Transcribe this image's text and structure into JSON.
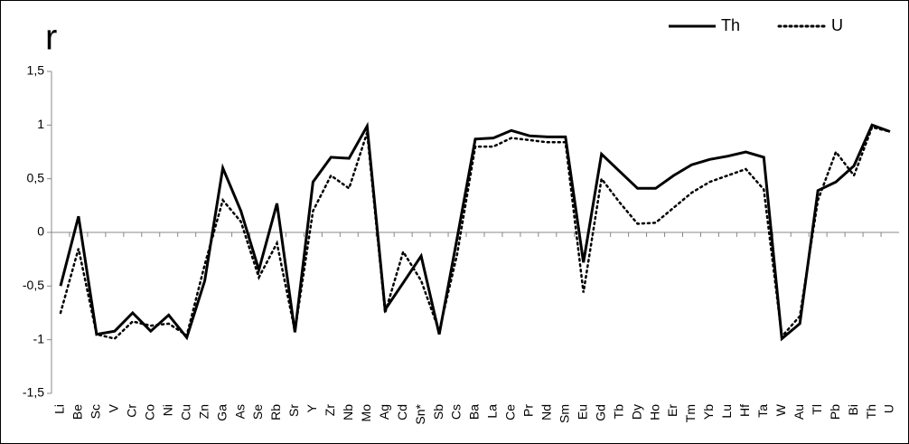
{
  "chart_data": {
    "type": "line",
    "title": "r",
    "categories": [
      "Li",
      "Be",
      "Sc",
      "V",
      "Cr",
      "Co",
      "Ni",
      "Cu",
      "Zn",
      "Ga",
      "As",
      "Se",
      "Rb",
      "Sr",
      "Y",
      "Zr",
      "Nb",
      "Mo",
      "Ag",
      "Cd",
      "Sn*",
      "Sb",
      "Cs",
      "Ba",
      "La",
      "Ce",
      "Pr",
      "Nd",
      "Sm",
      "Eu",
      "Gd",
      "Tb",
      "Dy",
      "Ho",
      "Er",
      "Tm",
      "Yb",
      "Lu",
      "Hf",
      "Ta",
      "W",
      "Au",
      "Tl",
      "Pb",
      "Bi",
      "Th",
      "U"
    ],
    "series": [
      {
        "name": "Th",
        "color": "#000000",
        "style": "solid",
        "values": [
          -0.5,
          0.15,
          -0.95,
          -0.92,
          -0.75,
          -0.92,
          -0.77,
          -0.98,
          -0.45,
          0.6,
          0.2,
          -0.35,
          0.27,
          -0.93,
          0.47,
          0.7,
          0.69,
          0.99,
          -0.72,
          -0.47,
          -0.22,
          -0.95,
          -0.05,
          0.87,
          0.88,
          0.95,
          0.9,
          0.89,
          0.89,
          -0.28,
          0.73,
          0.57,
          0.41,
          0.41,
          0.53,
          0.63,
          0.68,
          0.71,
          0.75,
          0.7,
          -0.99,
          -0.85,
          0.39,
          0.47,
          0.62,
          1.0,
          0.94
        ]
      },
      {
        "name": "U",
        "color": "#000000",
        "style": "dotted",
        "values": [
          -0.75,
          -0.15,
          -0.95,
          -0.99,
          -0.83,
          -0.87,
          -0.85,
          -0.96,
          -0.3,
          0.3,
          0.1,
          -0.42,
          -0.1,
          -0.92,
          0.2,
          0.53,
          0.41,
          0.93,
          -0.75,
          -0.18,
          -0.45,
          -0.92,
          -0.2,
          0.8,
          0.8,
          0.88,
          0.86,
          0.84,
          0.84,
          -0.56,
          0.5,
          0.28,
          0.08,
          0.09,
          0.23,
          0.37,
          0.47,
          0.53,
          0.59,
          0.4,
          -0.97,
          -0.78,
          0.3,
          0.75,
          0.53,
          0.98,
          0.94
        ]
      }
    ],
    "ylim": [
      -1.5,
      1.5
    ],
    "yticks": [
      {
        "value": -1.5,
        "label": "-1,5"
      },
      -1,
      {
        "value": -0.5,
        "label": "-0,5"
      },
      0,
      {
        "value": 0.5,
        "label": "0,5"
      },
      1,
      {
        "value": 1.5,
        "label": "1,5"
      }
    ],
    "legend": "top-right"
  }
}
